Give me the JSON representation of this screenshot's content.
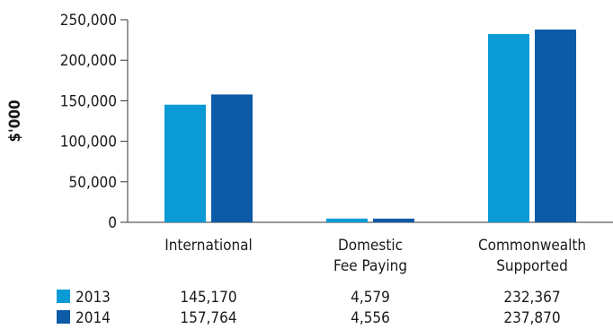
{
  "chart_data": {
    "type": "bar",
    "ylabel": "$'000",
    "ylim": [
      0,
      250000
    ],
    "yticks": [
      0,
      50000,
      100000,
      150000,
      200000,
      250000
    ],
    "ytick_labels": [
      "0",
      "50,000",
      "100,000",
      "150,000",
      "200,000",
      "250,000"
    ],
    "categories": [
      [
        "International"
      ],
      [
        "Domestic",
        "Fee Paying"
      ],
      [
        "Commonwealth",
        "Supported"
      ]
    ],
    "series": [
      {
        "name": "2013",
        "color": "#0a9bd6",
        "values": [
          145170,
          4579,
          232367
        ],
        "value_labels": [
          "145,170",
          "4,579",
          "232,367"
        ]
      },
      {
        "name": "2014",
        "color": "#0d5aa7",
        "values": [
          157764,
          4556,
          237870
        ],
        "value_labels": [
          "157,764",
          "4,556",
          "237,870"
        ]
      }
    ],
    "grid": false,
    "legend": "data table below chart"
  }
}
